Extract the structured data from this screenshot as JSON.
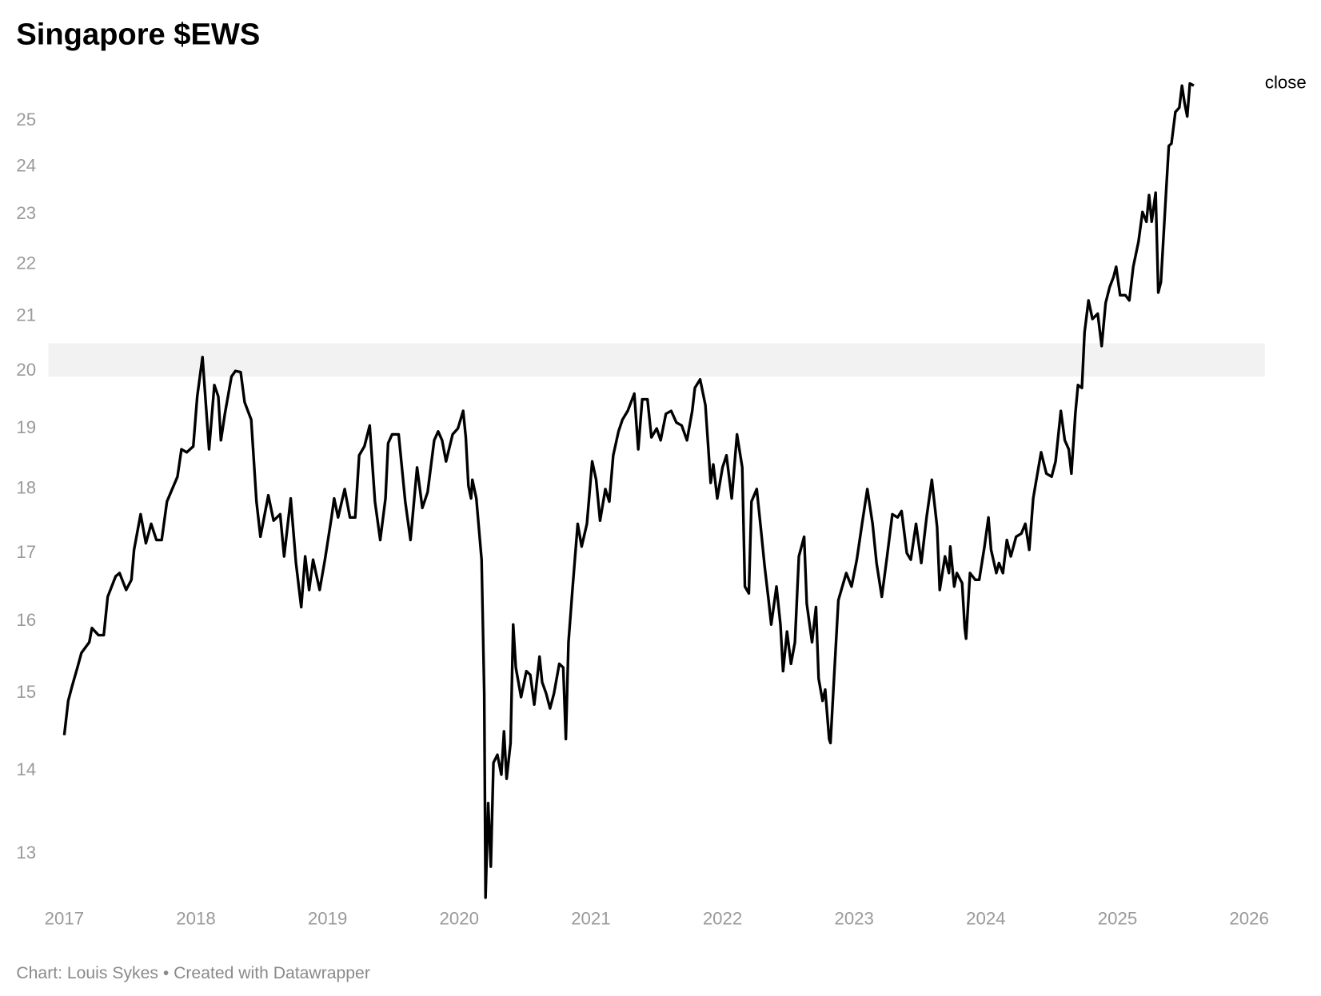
{
  "chart_data": {
    "type": "line",
    "title": "Singapore $EWS",
    "footer": "Chart: Louis Sykes • Created with Datawrapper",
    "log_scale": true,
    "grid": false,
    "band": {
      "from": 19.9,
      "to": 20.5,
      "color": "#f2f2f2"
    },
    "xlim": [
      2016.88,
      2026.12
    ],
    "xticks": [
      2017,
      2018,
      2019,
      2020,
      2021,
      2022,
      2023,
      2024,
      2025,
      2026
    ],
    "ylim": [
      12.46,
      26
    ],
    "yticks": [
      13,
      14,
      15,
      16,
      17,
      18,
      19,
      20,
      21,
      22,
      23,
      24,
      25
    ],
    "x": [
      2017.0,
      2017.03,
      2017.06,
      2017.1,
      2017.13,
      2017.19,
      2017.21,
      2017.26,
      2017.3,
      2017.33,
      2017.39,
      2017.42,
      2017.47,
      2017.51,
      2017.53,
      2017.58,
      2017.62,
      2017.66,
      2017.7,
      2017.74,
      2017.78,
      2017.82,
      2017.86,
      2017.89,
      2017.93,
      2017.98,
      2018.01,
      2018.05,
      2018.1,
      2018.14,
      2018.17,
      2018.19,
      2018.22,
      2018.27,
      2018.3,
      2018.34,
      2018.37,
      2018.42,
      2018.46,
      2018.49,
      2018.55,
      2018.59,
      2018.64,
      2018.67,
      2018.72,
      2018.76,
      2018.8,
      2018.83,
      2018.86,
      2018.89,
      2018.94,
      2018.98,
      2019.03,
      2019.05,
      2019.08,
      2019.13,
      2019.17,
      2019.21,
      2019.24,
      2019.28,
      2019.32,
      2019.36,
      2019.4,
      2019.44,
      2019.46,
      2019.49,
      2019.54,
      2019.59,
      2019.63,
      2019.68,
      2019.72,
      2019.76,
      2019.81,
      2019.84,
      2019.87,
      2019.9,
      2019.95,
      2019.99,
      2020.03,
      2020.05,
      2020.07,
      2020.09,
      2020.1,
      2020.13,
      2020.17,
      2020.19,
      2020.2,
      2020.22,
      2020.24,
      2020.26,
      2020.29,
      2020.32,
      2020.34,
      2020.36,
      2020.39,
      2020.41,
      2020.43,
      2020.47,
      2020.51,
      2020.54,
      2020.57,
      2020.61,
      2020.63,
      2020.66,
      2020.69,
      2020.72,
      2020.76,
      2020.79,
      2020.81,
      2020.83,
      2020.86,
      2020.9,
      2020.93,
      2020.97,
      2021.01,
      2021.04,
      2021.07,
      2021.11,
      2021.14,
      2021.17,
      2021.21,
      2021.24,
      2021.28,
      2021.33,
      2021.36,
      2021.39,
      2021.43,
      2021.46,
      2021.5,
      2021.53,
      2021.57,
      2021.61,
      2021.65,
      2021.69,
      2021.73,
      2021.77,
      2021.79,
      2021.83,
      2021.87,
      2021.91,
      2021.93,
      2021.96,
      2022.0,
      2022.03,
      2022.07,
      2022.11,
      2022.15,
      2022.17,
      2022.2,
      2022.22,
      2022.26,
      2022.29,
      2022.32,
      2022.35,
      2022.37,
      2022.41,
      2022.44,
      2022.46,
      2022.49,
      2022.52,
      2022.55,
      2022.58,
      2022.62,
      2022.64,
      2022.68,
      2022.71,
      2022.73,
      2022.76,
      2022.78,
      2022.81,
      2022.82,
      2022.85,
      2022.88,
      2022.91,
      2022.94,
      2022.98,
      2023.02,
      2023.06,
      2023.1,
      2023.14,
      2023.17,
      2023.21,
      2023.25,
      2023.29,
      2023.33,
      2023.36,
      2023.4,
      2023.43,
      2023.47,
      2023.51,
      2023.55,
      2023.59,
      2023.63,
      2023.65,
      2023.69,
      2023.72,
      2023.73,
      2023.76,
      2023.78,
      2023.82,
      2023.84,
      2023.85,
      2023.88,
      2023.92,
      2023.95,
      2023.99,
      2024.02,
      2024.04,
      2024.08,
      2024.1,
      2024.13,
      2024.16,
      2024.19,
      2024.23,
      2024.27,
      2024.3,
      2024.33,
      2024.36,
      2024.38,
      2024.42,
      2024.46,
      2024.5,
      2024.53,
      2024.57,
      2024.6,
      2024.63,
      2024.65,
      2024.68,
      2024.7,
      2024.73,
      2024.75,
      2024.78,
      2024.81,
      2024.85,
      2024.88,
      2024.91,
      2024.94,
      2024.97,
      2024.99,
      2025.02,
      2025.06,
      2025.09,
      2025.12,
      2025.16,
      2025.19,
      2025.22,
      2025.24,
      2025.26,
      2025.29,
      2025.31,
      2025.33,
      2025.37,
      2025.39,
      2025.41,
      2025.44,
      2025.47,
      2025.49,
      2025.51,
      2025.53,
      2025.55,
      2025.58
    ],
    "series": [
      {
        "name": "close",
        "color": "#000000",
        "values": [
          14.45,
          14.9,
          15.1,
          15.35,
          15.55,
          15.7,
          15.9,
          15.8,
          15.8,
          16.35,
          16.65,
          16.7,
          16.45,
          16.6,
          17.05,
          17.6,
          17.15,
          17.45,
          17.2,
          17.2,
          17.8,
          18.0,
          18.2,
          18.65,
          18.6,
          18.7,
          19.55,
          20.25,
          18.65,
          19.75,
          19.55,
          18.8,
          19.25,
          19.9,
          20.0,
          19.98,
          19.45,
          19.15,
          17.8,
          17.25,
          17.9,
          17.5,
          17.6,
          16.95,
          17.85,
          16.85,
          16.2,
          16.95,
          16.45,
          16.9,
          16.45,
          16.9,
          17.55,
          17.85,
          17.55,
          18.0,
          17.55,
          17.55,
          18.55,
          18.7,
          19.05,
          17.8,
          17.2,
          17.85,
          18.75,
          18.9,
          18.9,
          17.8,
          17.2,
          18.35,
          17.7,
          17.95,
          18.8,
          18.95,
          18.8,
          18.45,
          18.9,
          19.0,
          19.3,
          18.85,
          18.05,
          17.85,
          18.15,
          17.85,
          16.9,
          15.0,
          12.5,
          13.6,
          12.85,
          14.1,
          14.2,
          13.95,
          14.5,
          13.9,
          14.35,
          15.95,
          15.35,
          14.95,
          15.3,
          15.25,
          14.85,
          15.5,
          15.15,
          15.0,
          14.8,
          15.0,
          15.4,
          15.35,
          14.4,
          15.7,
          16.45,
          17.45,
          17.1,
          17.45,
          18.45,
          18.15,
          17.5,
          18.0,
          17.8,
          18.55,
          18.95,
          19.15,
          19.3,
          19.6,
          18.65,
          19.5,
          19.5,
          18.85,
          19.0,
          18.8,
          19.25,
          19.3,
          19.1,
          19.05,
          18.8,
          19.3,
          19.7,
          19.85,
          19.4,
          18.1,
          18.4,
          17.85,
          18.35,
          18.55,
          17.85,
          18.9,
          18.35,
          16.5,
          16.4,
          17.8,
          18.0,
          17.4,
          16.8,
          16.3,
          15.95,
          16.5,
          15.95,
          15.3,
          15.85,
          15.4,
          15.7,
          16.95,
          17.25,
          16.25,
          15.7,
          16.2,
          15.2,
          14.9,
          15.05,
          14.4,
          14.35,
          15.3,
          16.3,
          16.5,
          16.7,
          16.5,
          16.9,
          17.45,
          18.0,
          17.45,
          16.85,
          16.35,
          16.95,
          17.6,
          17.55,
          17.65,
          17.0,
          16.9,
          17.45,
          16.85,
          17.55,
          18.15,
          17.4,
          16.45,
          16.95,
          16.7,
          17.1,
          16.5,
          16.7,
          16.55,
          15.9,
          15.75,
          16.7,
          16.6,
          16.6,
          17.1,
          17.55,
          17.05,
          16.7,
          16.85,
          16.7,
          17.2,
          16.95,
          17.25,
          17.3,
          17.45,
          17.05,
          17.85,
          18.1,
          18.6,
          18.25,
          18.2,
          18.45,
          19.3,
          18.8,
          18.65,
          18.25,
          19.25,
          19.75,
          19.7,
          20.7,
          21.3,
          20.95,
          21.05,
          20.45,
          21.25,
          21.55,
          21.75,
          21.95,
          21.4,
          21.4,
          21.3,
          21.95,
          22.45,
          23.05,
          22.85,
          23.4,
          22.85,
          23.45,
          21.45,
          21.65,
          23.5,
          24.45,
          24.5,
          25.2,
          25.3,
          25.8,
          25.4,
          25.1,
          25.85,
          25.8
        ]
      }
    ]
  }
}
